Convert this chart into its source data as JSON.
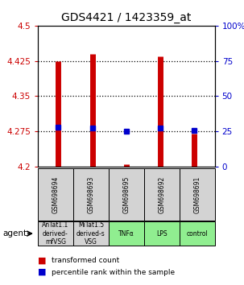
{
  "title": "GDS4421 / 1423359_at",
  "samples": [
    "GSM698694",
    "GSM698693",
    "GSM698695",
    "GSM698692",
    "GSM698691"
  ],
  "agent_labels": [
    "AnTat1.1\nderived-\nmfVSG",
    "MiTat1.5\nderived-s\nVSG",
    "TNFα",
    "LPS",
    "control"
  ],
  "agent_colors": [
    "#d3d3d3",
    "#d3d3d3",
    "#90ee90",
    "#90ee90",
    "#90ee90"
  ],
  "red_values": [
    4.425,
    4.44,
    4.205,
    4.435,
    4.27
  ],
  "blue_values": [
    4.284,
    4.283,
    4.276,
    4.283,
    4.277
  ],
  "ylim": [
    4.2,
    4.5
  ],
  "yticks_left": [
    4.2,
    4.275,
    4.35,
    4.425,
    4.5
  ],
  "yticks_right": [
    0,
    25,
    50,
    75,
    100
  ],
  "ytick_labels_left": [
    "4.2",
    "4.275",
    "4.35",
    "4.425",
    "4.5"
  ],
  "ytick_labels_right": [
    "0",
    "25",
    "50",
    "75",
    "100%"
  ],
  "hlines": [
    4.275,
    4.35,
    4.425
  ],
  "bar_bottom": 4.2,
  "red_color": "#cc0000",
  "blue_color": "#0000cc",
  "title_fontsize": 10,
  "tick_fontsize": 7.5,
  "sample_fontsize": 5.5,
  "agent_fontsize": 5.5,
  "legend_fontsize": 6.5,
  "agent_text_fontsize": 7.5
}
